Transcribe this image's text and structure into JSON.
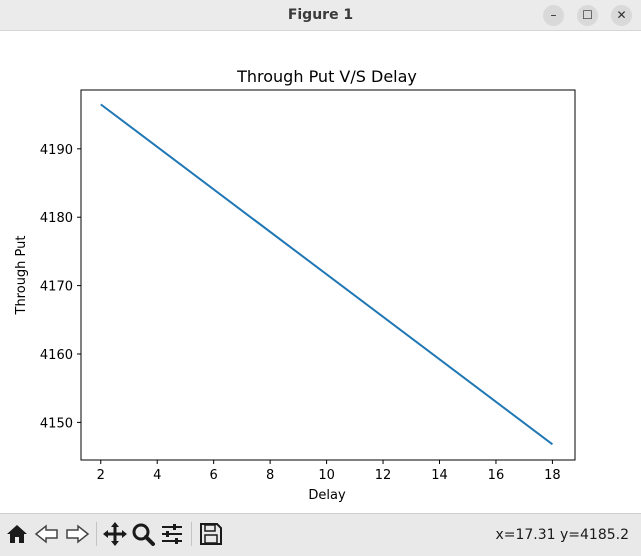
{
  "window": {
    "title": "Figure 1",
    "minimize_glyph": "–",
    "maximize_glyph": "☐",
    "close_glyph": "✕"
  },
  "toolbar": {
    "buttons": [
      {
        "name": "home-icon"
      },
      {
        "name": "back-arrow-icon"
      },
      {
        "name": "forward-arrow-icon"
      },
      {
        "name": "pan-move-icon"
      },
      {
        "name": "zoom-magnifier-icon"
      },
      {
        "name": "configure-subplots-icon"
      },
      {
        "name": "save-floppy-icon"
      }
    ],
    "coordinates": "x=17.31 y=4185.2"
  },
  "chart_data": {
    "type": "line",
    "title": "Through Put V/S Delay",
    "xlabel": "Delay",
    "ylabel": "Through Put",
    "xlim": [
      1.3,
      18.8
    ],
    "ylim": [
      4144.5,
      4198.6
    ],
    "x_ticks": [
      "2",
      "4",
      "6",
      "8",
      "10",
      "12",
      "14",
      "16",
      "18"
    ],
    "y_ticks": [
      "4150",
      "4160",
      "4170",
      "4180",
      "4190"
    ],
    "grid": false,
    "series": [
      {
        "color": "#1f77b4",
        "x": [
          2,
          18
        ],
        "y": [
          4196.5,
          4146.8
        ]
      }
    ]
  }
}
